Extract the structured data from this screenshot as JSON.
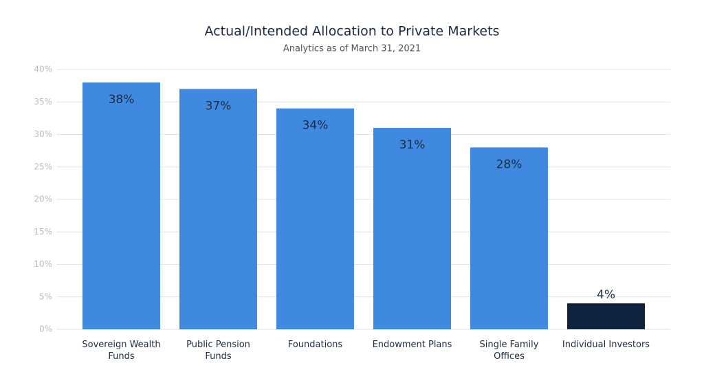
{
  "chart_data": {
    "type": "bar",
    "title": "Actual/Intended Allocation to Private Markets",
    "subtitle": "Analytics as of March 31, 2021",
    "categories": [
      "Sovereign Wealth Funds",
      "Public Pension Funds",
      "Foundations",
      "Endowment Plans",
      "Single Family Offices",
      "Individual Investors"
    ],
    "values": [
      38,
      37,
      34,
      31,
      28,
      4
    ],
    "value_labels": [
      "38%",
      "37%",
      "34%",
      "31%",
      "28%",
      "4%"
    ],
    "colors": [
      "#3f8ae0",
      "#3f8ae0",
      "#3f8ae0",
      "#3f8ae0",
      "#3f8ae0",
      "#0f2240"
    ],
    "ylim": [
      0,
      40
    ],
    "yticks": [
      {
        "value": 0,
        "label": "0%"
      },
      {
        "value": 5,
        "label": "5%"
      },
      {
        "value": 10,
        "label": "10%"
      },
      {
        "value": 15,
        "label": "15%"
      },
      {
        "value": 20,
        "label": "20%"
      },
      {
        "value": 25,
        "label": "25%"
      },
      {
        "value": 30,
        "label": "30%"
      },
      {
        "value": 35,
        "label": "35%"
      },
      {
        "value": 40,
        "label": "40%"
      }
    ],
    "grid": true
  }
}
